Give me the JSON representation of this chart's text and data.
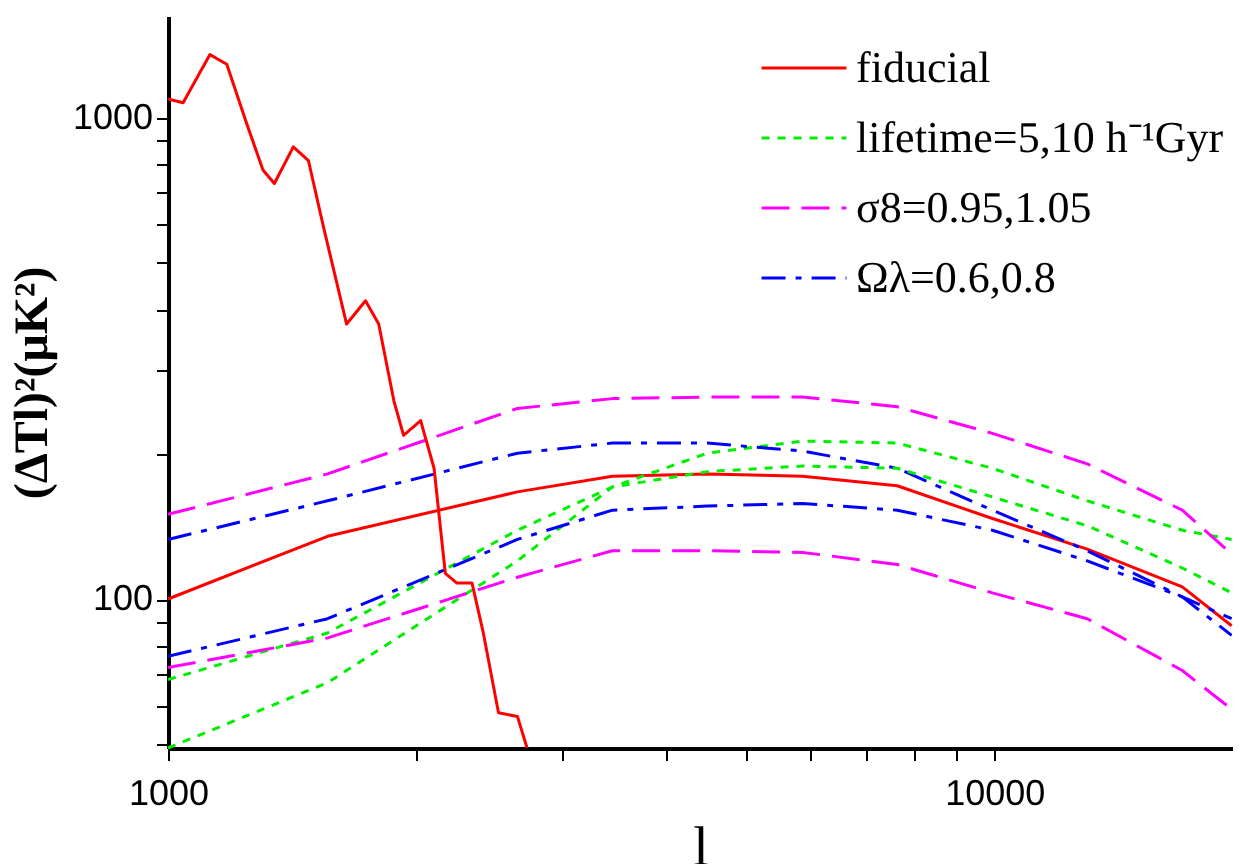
{
  "chart_data": {
    "type": "line",
    "xlabel": "l",
    "ylabel": "(ΔTl)²(μK²)",
    "log": "xy",
    "legend": "top right",
    "grid": false,
    "xlim": [
      1000,
      19400
    ],
    "ylim": [
      49,
      1630
    ],
    "xticks": [
      1000,
      {
        "value": 2000,
        "label": null
      },
      {
        "value": 3000,
        "label": null
      },
      {
        "value": 4000,
        "label": null
      },
      {
        "value": 5000,
        "label": null
      },
      {
        "value": 6000,
        "label": null
      },
      {
        "value": 7000,
        "label": null
      },
      {
        "value": 8000,
        "label": null
      },
      {
        "value": 9000,
        "label": null
      },
      10000
    ],
    "yticks": [
      {
        "value": 50,
        "label": null
      },
      {
        "value": 60,
        "label": null
      },
      {
        "value": 70,
        "label": null
      },
      {
        "value": 80,
        "label": null
      },
      {
        "value": 90,
        "label": null
      },
      100,
      {
        "value": 200,
        "label": null
      },
      {
        "value": 300,
        "label": null
      },
      {
        "value": 400,
        "label": null
      },
      {
        "value": 500,
        "label": null
      },
      {
        "value": 600,
        "label": null
      },
      {
        "value": 700,
        "label": null
      },
      {
        "value": 800,
        "label": null
      },
      {
        "value": 900,
        "label": null
      },
      1000
    ],
    "series": [
      {
        "name": "fiducial",
        "color": "#ff0000",
        "line_style": "solid",
        "x": [
          1000,
          1560,
          2648,
          3451,
          4496,
          5861,
          7630,
          9950,
          12960,
          16890,
          19380
        ],
        "values": [
          100,
          135,
          167,
          180,
          182,
          180,
          172,
          147,
          127,
          106,
          88
        ]
      },
      {
        "name": "lifetime=5,10 h⁻¹Gyr",
        "color": "#00ee00",
        "line_style": "dotted",
        "x": [
          1000,
          1560,
          2648,
          3451,
          4496,
          5861,
          7630,
          9950,
          12960,
          16890,
          19380
        ],
        "values": [
          49,
          67,
          120,
          171,
          201,
          213,
          211,
          187,
          160,
          139,
          133
        ]
      },
      {
        "color": "#00ee00",
        "line_style": "dotted",
        "x": [
          1000,
          1560,
          2648,
          3451,
          4496,
          5861,
          7630,
          9950,
          12960,
          16890,
          19380
        ],
        "values": [
          68,
          85,
          139,
          171,
          184,
          189,
          187,
          163,
          142,
          116,
          103
        ]
      },
      {
        "name": "σ8=0.95,1.05",
        "color": "#ff00ff",
        "line_style": "dashed",
        "x": [
          1000,
          1560,
          2648,
          3451,
          4496,
          5861,
          7630,
          9950,
          12960,
          16890,
          19380
        ],
        "values": [
          150,
          182,
          249,
          261,
          263,
          263,
          251,
          221,
          191,
          153,
          124
        ]
      },
      {
        "color": "#ff00ff",
        "line_style": "dashed",
        "x": [
          1000,
          1560,
          2648,
          3451,
          4496,
          5861,
          7630,
          9950,
          12960,
          16890,
          19380
        ],
        "values": [
          72,
          83,
          111,
          126,
          126,
          125,
          118,
          103,
          91,
          71,
          59
        ]
      },
      {
        "name": "Ωλ=0.6,0.8",
        "color": "#0000ff",
        "line_style": "dashdot",
        "x": [
          1000,
          1560,
          2648,
          3451,
          4496,
          5861,
          7630,
          9950,
          12960,
          16890,
          19380
        ],
        "values": [
          133,
          160,
          201,
          211,
          211,
          203,
          187,
          153,
          126,
          101,
          91
        ]
      },
      {
        "color": "#0000ff",
        "line_style": "dashdot",
        "x": [
          1000,
          1560,
          2648,
          3451,
          4496,
          5861,
          7630,
          9950,
          12960,
          16890,
          19380
        ],
        "values": [
          76,
          91,
          133,
          153,
          156,
          158,
          153,
          139,
          120,
          101,
          84
        ]
      },
      {
        "color": "#ff0000",
        "line_style": "solid",
        "x": [
          1000,
          1043,
          1124,
          1178,
          1243,
          1303,
          1345,
          1418,
          1479,
          1543,
          1645,
          1734,
          1799,
          1877,
          1928,
          2022,
          2099,
          2166,
          2235,
          2333,
          2408,
          2512,
          2648,
          2720
        ],
        "values": [
          1096,
          1076,
          1355,
          1294,
          982,
          780,
          731,
          871,
          816,
          592,
          373,
          417,
          373,
          258,
          219,
          235,
          187,
          113,
          108,
          108,
          85,
          58,
          57,
          49
        ]
      }
    ]
  }
}
